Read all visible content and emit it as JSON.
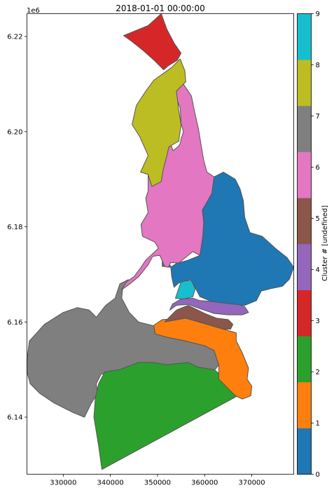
{
  "chart_data": {
    "type": "choropleth-map",
    "title": "2018-01-01 00:00:00",
    "axis_offset_label": "1e6",
    "xlim": [
      322300,
      378900
    ],
    "ylim": [
      6128000,
      6224800
    ],
    "xticks": [
      330000,
      340000,
      350000,
      360000,
      370000
    ],
    "xtick_labels": [
      "330000",
      "340000",
      "350000",
      "360000",
      "370000"
    ],
    "yticks": [
      6140000,
      6160000,
      6180000,
      6200000,
      6220000
    ],
    "ytick_labels": [
      "6.14",
      "6.16",
      "6.18",
      "6.20",
      "6.22"
    ],
    "colorbar": {
      "label": "Cluster # [undefined]",
      "range": [
        0,
        9
      ],
      "ticks": [
        0,
        1,
        2,
        3,
        4,
        5,
        6,
        7,
        8,
        9
      ],
      "tick_labels": [
        "0",
        "1",
        "2",
        "3",
        "4",
        "5",
        "6",
        "7",
        "8",
        "9"
      ],
      "colors": [
        "#1f77b4",
        "#ff7f0e",
        "#2ca02c",
        "#d62728",
        "#9467bd",
        "#8c564b",
        "#e377c2",
        "#7f7f7f",
        "#bcbd22",
        "#17becf"
      ]
    },
    "regions": [
      {
        "cluster": 7,
        "points": [
          [
            322300,
            6152000
          ],
          [
            322800,
            6156000
          ],
          [
            326000,
            6159500
          ],
          [
            330000,
            6162000
          ],
          [
            333000,
            6163000
          ],
          [
            335500,
            6162500
          ],
          [
            337000,
            6161000
          ],
          [
            339000,
            6163500
          ],
          [
            341000,
            6165000
          ],
          [
            342000,
            6168000
          ],
          [
            343800,
            6168900
          ],
          [
            342600,
            6167000
          ],
          [
            342400,
            6165000
          ],
          [
            344000,
            6162000
          ],
          [
            346000,
            6160000
          ],
          [
            349200,
            6159200
          ],
          [
            349500,
            6157500
          ],
          [
            352000,
            6156800
          ],
          [
            356000,
            6156000
          ],
          [
            360000,
            6155000
          ],
          [
            362000,
            6154000
          ],
          [
            363000,
            6151000
          ],
          [
            361000,
            6148500
          ],
          [
            356000,
            6148000
          ],
          [
            352000,
            6149000
          ],
          [
            348000,
            6150000
          ],
          [
            345000,
            6151000
          ],
          [
            342000,
            6150000
          ],
          [
            338000,
            6149000
          ],
          [
            337000,
            6147000
          ],
          [
            337300,
            6145000
          ],
          [
            336000,
            6143000
          ],
          [
            334500,
            6140000
          ],
          [
            332000,
            6141000
          ],
          [
            328000,
            6143000
          ],
          [
            325000,
            6145000
          ],
          [
            323000,
            6147000
          ],
          [
            322300,
            6149500
          ]
        ]
      },
      {
        "cluster": 2,
        "points": [
          [
            338200,
            6129000
          ],
          [
            368000,
            6145000
          ],
          [
            366500,
            6145500
          ],
          [
            364500,
            6148000
          ],
          [
            362000,
            6150000
          ],
          [
            358500,
            6150500
          ],
          [
            356500,
            6151500
          ],
          [
            352000,
            6151000
          ],
          [
            349000,
            6151500
          ],
          [
            346000,
            6151500
          ],
          [
            342000,
            6150000
          ],
          [
            338800,
            6149500
          ],
          [
            337500,
            6147000
          ],
          [
            336800,
            6144000
          ],
          [
            336500,
            6140000
          ],
          [
            337500,
            6134000
          ]
        ]
      },
      {
        "cluster": 1,
        "points": [
          [
            349200,
            6159300
          ],
          [
            351000,
            6160500
          ],
          [
            356000,
            6160800
          ],
          [
            360500,
            6159500
          ],
          [
            364000,
            6158500
          ],
          [
            366700,
            6157700
          ],
          [
            366700,
            6156000
          ],
          [
            368000,
            6153500
          ],
          [
            369300,
            6150300
          ],
          [
            369000,
            6148000
          ],
          [
            370000,
            6146500
          ],
          [
            369800,
            6144500
          ],
          [
            368000,
            6143800
          ],
          [
            366500,
            6144500
          ],
          [
            363000,
            6148000
          ],
          [
            363000,
            6151000
          ],
          [
            362000,
            6154000
          ],
          [
            360000,
            6155000
          ],
          [
            356000,
            6156000
          ],
          [
            352000,
            6156800
          ],
          [
            349500,
            6157500
          ]
        ]
      },
      {
        "cluster": 5,
        "points": [
          [
            352000,
            6160500
          ],
          [
            354000,
            6162500
          ],
          [
            356500,
            6163500
          ],
          [
            360000,
            6161800
          ],
          [
            362500,
            6160800
          ],
          [
            365000,
            6160500
          ],
          [
            366000,
            6159500
          ],
          [
            365500,
            6158500
          ],
          [
            364000,
            6158500
          ],
          [
            360500,
            6159500
          ],
          [
            356000,
            6160800
          ],
          [
            351500,
            6160000
          ]
        ]
      },
      {
        "cluster": 4,
        "points": [
          [
            352600,
            6162500
          ],
          [
            354000,
            6163500
          ],
          [
            356500,
            6163700
          ],
          [
            359000,
            6162800
          ],
          [
            362000,
            6161800
          ],
          [
            365000,
            6161500
          ],
          [
            368000,
            6161500
          ],
          [
            369300,
            6162000
          ],
          [
            368500,
            6163200
          ],
          [
            366000,
            6164200
          ],
          [
            362000,
            6164300
          ],
          [
            359000,
            6164500
          ],
          [
            357500,
            6165000
          ],
          [
            355000,
            6164800
          ],
          [
            353200,
            6163800
          ]
        ]
      },
      {
        "cluster": 9,
        "points": [
          [
            353800,
            6165000
          ],
          [
            355000,
            6168500
          ],
          [
            357200,
            6168800
          ],
          [
            358000,
            6167000
          ],
          [
            357500,
            6165300
          ],
          [
            355500,
            6164800
          ]
        ]
      },
      {
        "cluster": 0,
        "points": [
          [
            353500,
            6167300
          ],
          [
            354500,
            6168200
          ],
          [
            357000,
            6169000
          ],
          [
            358000,
            6167200
          ],
          [
            359000,
            6165300
          ],
          [
            361500,
            6164300
          ],
          [
            364000,
            6164000
          ],
          [
            368500,
            6163500
          ],
          [
            371000,
            6164500
          ],
          [
            372000,
            6166500
          ],
          [
            374000,
            6167000
          ],
          [
            376500,
            6167500
          ],
          [
            378000,
            6169000
          ],
          [
            378900,
            6171500
          ],
          [
            377500,
            6173500
          ],
          [
            375000,
            6175500
          ],
          [
            372200,
            6178000
          ],
          [
            369600,
            6178800
          ],
          [
            368500,
            6182000
          ],
          [
            368200,
            6185500
          ],
          [
            367500,
            6188000
          ],
          [
            366500,
            6190000
          ],
          [
            364000,
            6191500
          ],
          [
            362000,
            6190500
          ],
          [
            361000,
            6186500
          ],
          [
            359500,
            6183500
          ],
          [
            359800,
            6181000
          ],
          [
            359600,
            6178000
          ],
          [
            359000,
            6174000
          ],
          [
            356500,
            6173000
          ],
          [
            354000,
            6172300
          ],
          [
            352800,
            6171500
          ],
          [
            351000,
            6171700
          ],
          [
            351000,
            6173000
          ],
          [
            352800,
            6171800
          ],
          [
            353000,
            6169500
          ]
        ]
      },
      {
        "cluster": 6,
        "points": [
          [
            342400,
            6166800
          ],
          [
            343600,
            6167600
          ],
          [
            346000,
            6169500
          ],
          [
            348000,
            6172000
          ],
          [
            349000,
            6173800
          ],
          [
            350500,
            6174000
          ],
          [
            351500,
            6171700
          ],
          [
            352300,
            6171500
          ],
          [
            352800,
            6172500
          ],
          [
            354500,
            6172400
          ],
          [
            357500,
            6174800
          ],
          [
            359000,
            6174000
          ],
          [
            359600,
            6178000
          ],
          [
            359800,
            6181000
          ],
          [
            359500,
            6183500
          ],
          [
            361500,
            6187000
          ],
          [
            362000,
            6190500
          ],
          [
            360500,
            6191500
          ],
          [
            359800,
            6194000
          ],
          [
            359200,
            6197500
          ],
          [
            358700,
            6200500
          ],
          [
            357800,
            6204500
          ],
          [
            357200,
            6207500
          ],
          [
            355500,
            6210000
          ],
          [
            353800,
            6209200
          ],
          [
            353800,
            6207500
          ],
          [
            354800,
            6205000
          ],
          [
            355000,
            6201700
          ],
          [
            355500,
            6200000
          ],
          [
            355000,
            6198500
          ],
          [
            354800,
            6197500
          ],
          [
            354500,
            6197000
          ],
          [
            353300,
            6196000
          ],
          [
            352500,
            6198300
          ],
          [
            351300,
            6199200
          ],
          [
            351000,
            6195000
          ],
          [
            349000,
            6193000
          ],
          [
            348000,
            6191000
          ],
          [
            348000,
            6187500
          ],
          [
            347500,
            6186000
          ],
          [
            348000,
            6183000
          ],
          [
            346500,
            6180500
          ],
          [
            346800,
            6178000
          ],
          [
            349400,
            6176800
          ],
          [
            350200,
            6175500
          ],
          [
            347500,
            6173000
          ],
          [
            346500,
            6171500
          ],
          [
            345000,
            6169500
          ],
          [
            343500,
            6168500
          ]
        ]
      },
      {
        "cluster": 8,
        "points": [
          [
            346400,
            6191500
          ],
          [
            348000,
            6195000
          ],
          [
            346200,
            6199000
          ],
          [
            344600,
            6201500
          ],
          [
            345500,
            6205500
          ],
          [
            347500,
            6208500
          ],
          [
            349200,
            6210800
          ],
          [
            353000,
            6213500
          ],
          [
            354800,
            6215300
          ],
          [
            355800,
            6212800
          ],
          [
            356000,
            6210500
          ],
          [
            354000,
            6208500
          ],
          [
            354500,
            6204500
          ],
          [
            355000,
            6201500
          ],
          [
            354500,
            6198000
          ],
          [
            352400,
            6196800
          ],
          [
            352000,
            6195000
          ],
          [
            351200,
            6192000
          ],
          [
            350800,
            6189500
          ],
          [
            348800,
            6188500
          ],
          [
            348000,
            6191000
          ]
        ]
      },
      {
        "cluster": 3,
        "points": [
          [
            342800,
            6220200
          ],
          [
            348000,
            6222300
          ],
          [
            350800,
            6224800
          ],
          [
            352000,
            6221500
          ],
          [
            353600,
            6218500
          ],
          [
            355000,
            6216500
          ],
          [
            354200,
            6215000
          ],
          [
            352200,
            6213800
          ],
          [
            351300,
            6213000
          ],
          [
            349500,
            6214800
          ],
          [
            347000,
            6217000
          ],
          [
            344500,
            6219000
          ]
        ]
      }
    ]
  }
}
